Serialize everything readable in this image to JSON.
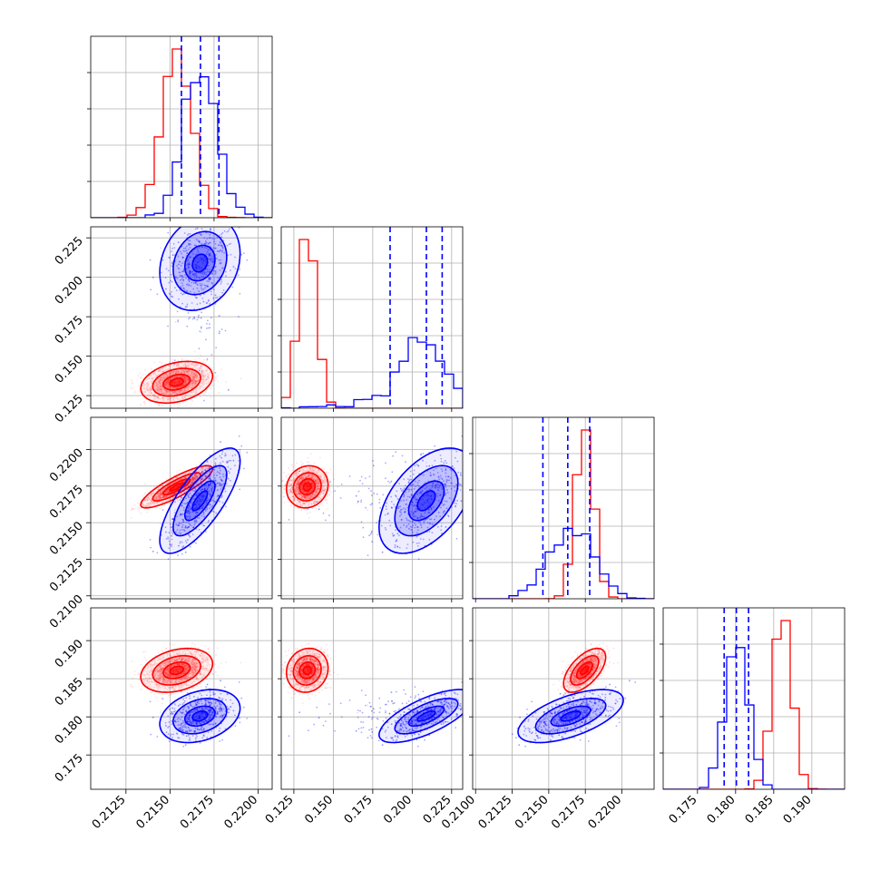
{
  "chart_data": {
    "type": "corner",
    "colors": {
      "a": "#ff0000",
      "b": "#0000ff",
      "grid": "#b0b0b0"
    },
    "grid": true,
    "params": [
      {
        "range": [
          0.2105,
          0.2208
        ],
        "ticks": [
          "0.2125",
          "0.2150",
          "0.2175",
          "0.2200"
        ]
      },
      {
        "range": [
          0.117,
          0.232
        ],
        "ticks": [
          "0.125",
          "0.150",
          "0.175",
          "0.200",
          "0.225"
        ]
      },
      {
        "range": [
          0.2098,
          0.2222
        ],
        "ticks": [
          "0.2100",
          "0.2125",
          "0.2150",
          "0.2175",
          "0.2200"
        ]
      },
      {
        "range": [
          0.1705,
          0.1943
        ],
        "ticks": [
          "0.175",
          "0.180",
          "0.185",
          "0.190"
        ]
      }
    ],
    "groups": [
      {
        "key": "a",
        "mean": [
          0.21538,
          0.1335,
          0.21745,
          0.1861
        ],
        "sd": [
          0.00085,
          0.0055,
          0.0006,
          0.0012
        ],
        "corr": [
          [
            1,
            0.3,
            0.85,
            0.3
          ],
          [
            0.3,
            1,
            0.1,
            0.1
          ],
          [
            0.85,
            0.1,
            1,
            0.6
          ],
          [
            0.3,
            0.1,
            0.6,
            1
          ]
        ]
      },
      {
        "key": "b",
        "mean": [
          0.2167,
          0.209,
          0.2165,
          0.1801
        ],
        "sd": [
          0.00095,
          0.0125,
          0.0015,
          0.00145
        ],
        "corr": [
          [
            1,
            0.2,
            0.75,
            0.3
          ],
          [
            0.2,
            1,
            0.5,
            0.7
          ],
          [
            0.75,
            0.5,
            1,
            0.6
          ],
          [
            0.3,
            0.7,
            0.6,
            1
          ]
        ]
      }
    ],
    "quantiles_b": [
      [
        0.21565,
        0.21673,
        0.21778
      ],
      [
        0.186,
        0.209,
        0.219
      ],
      [
        0.2146,
        0.2163,
        0.2178
      ],
      [
        0.1785,
        0.1801,
        0.1817
      ]
    ]
  }
}
